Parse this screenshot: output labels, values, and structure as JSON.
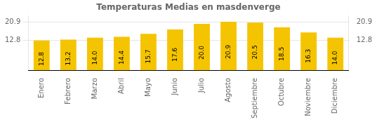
{
  "chart_data": {
    "type": "bar",
    "title": "Temperaturas Medias en masdenverge",
    "categories": [
      "Enero",
      "Febrero",
      "Marzo",
      "Abril",
      "Mayo",
      "Junio",
      "Julio",
      "Agosto",
      "Septiembre",
      "Octubre",
      "Noviembre",
      "Diciembre"
    ],
    "values": [
      12.8,
      13.2,
      14.0,
      14.4,
      15.7,
      17.6,
      20.0,
      20.9,
      20.5,
      18.5,
      16.3,
      14.0
    ],
    "value_labels": [
      "12.8",
      "13.2",
      "14.0",
      "14.4",
      "15.7",
      "17.6",
      "20.0",
      "20.9",
      "20.5",
      "18.5",
      "16.3",
      "14.0"
    ],
    "color": "#F5C400",
    "ylim": [
      0.0,
      23.5
    ],
    "yticks": [
      12.8,
      20.9
    ],
    "y2lim": [
      0.0,
      23.5
    ],
    "y2ticks": [
      12.8,
      20.9
    ],
    "grid": true,
    "data_labels": true
  }
}
